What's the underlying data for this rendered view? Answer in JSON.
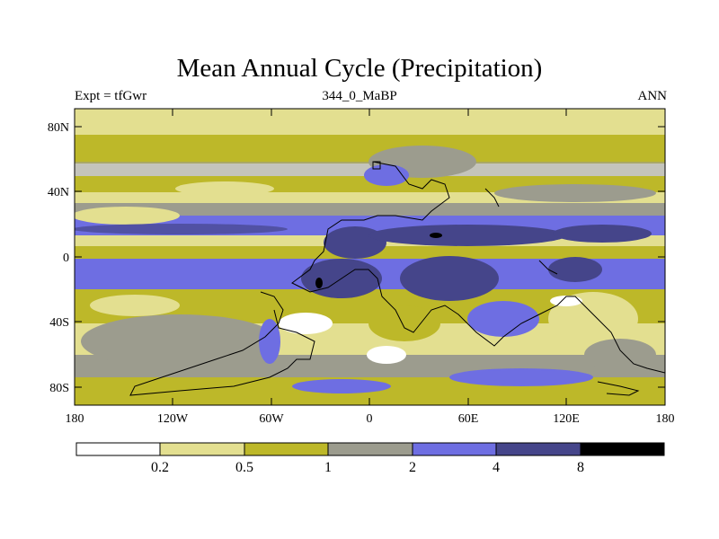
{
  "title": "Mean Annual Cycle (Precipitation)",
  "subtitle_left": "Expt = tfGwr",
  "subtitle_center": "344_0_MaBP",
  "subtitle_right": "ANN",
  "x_ticks": [
    "180",
    "120W",
    "60W",
    "0",
    "60E",
    "120E",
    "180"
  ],
  "y_ticks": [
    "80N",
    "40N",
    "0",
    "40S",
    "80S"
  ],
  "colorbar": {
    "colors": [
      "#ffffff",
      "#e3df90",
      "#bdb829",
      "#9c9c8e",
      "#6e6ee2",
      "#45458a",
      "#000000"
    ],
    "labels": [
      "0.2",
      "0.5",
      "1",
      "2",
      "4",
      "8"
    ]
  }
}
